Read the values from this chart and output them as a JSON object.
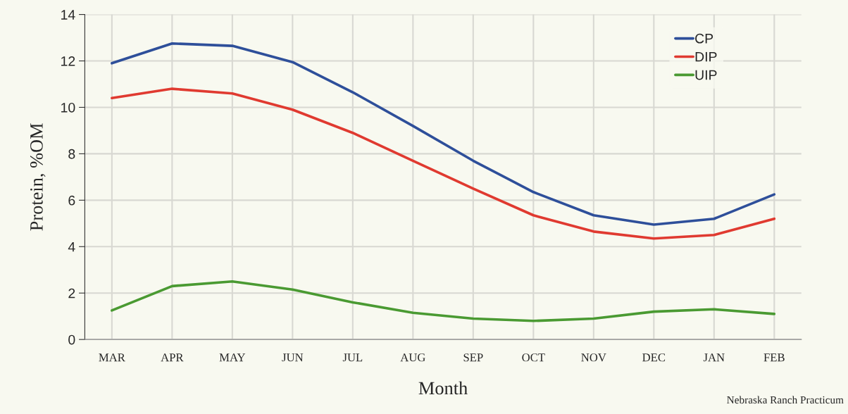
{
  "chart_data": {
    "type": "line",
    "xlabel": "Month",
    "ylabel": "Protein, %OM",
    "categories": [
      "MAR",
      "APR",
      "MAY",
      "JUN",
      "JUL",
      "AUG",
      "SEP",
      "OCT",
      "NOV",
      "DEC",
      "JAN",
      "FEB"
    ],
    "series": [
      {
        "name": "CP",
        "color": "#2e4f9a",
        "values": [
          11.9,
          12.75,
          12.65,
          11.95,
          10.65,
          9.2,
          7.7,
          6.35,
          5.35,
          4.95,
          5.2,
          6.25
        ]
      },
      {
        "name": "DIP",
        "color": "#e03a30",
        "values": [
          10.4,
          10.8,
          10.6,
          9.9,
          8.9,
          7.7,
          6.5,
          5.35,
          4.65,
          4.35,
          4.5,
          5.2
        ]
      },
      {
        "name": "UIP",
        "color": "#4a9a32",
        "values": [
          1.25,
          2.3,
          2.5,
          2.15,
          1.6,
          1.15,
          0.9,
          0.8,
          0.9,
          1.2,
          1.3,
          1.1
        ]
      }
    ],
    "ylim": [
      0,
      14
    ],
    "yticks": [
      0,
      2,
      4,
      6,
      8,
      10,
      12,
      14
    ],
    "grid": true,
    "legend": "top right",
    "line_style": "solid",
    "annotations": [
      "Nebraska Ranch Practicum"
    ]
  }
}
